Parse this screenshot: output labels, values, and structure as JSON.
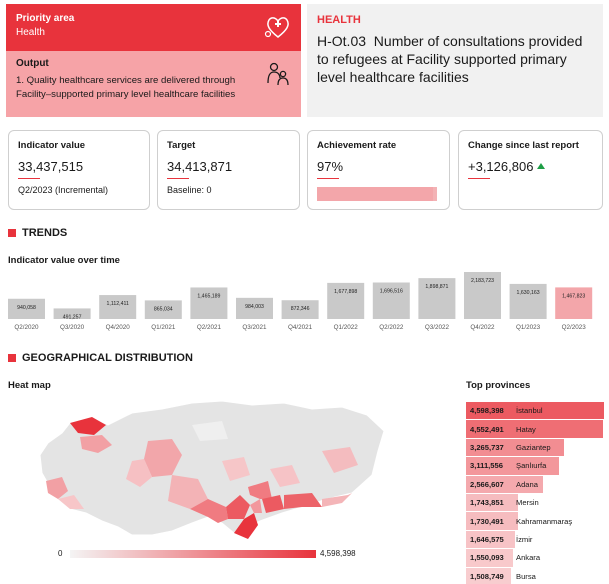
{
  "priority": {
    "heading": "Priority area",
    "value": "Health",
    "icon": "health-care-icon"
  },
  "output": {
    "heading": "Output",
    "text": "1. Quality healthcare services are delivered through Facility–supported primary level healthcare facilities",
    "icon": "family-icon"
  },
  "indicator": {
    "category": "HEALTH",
    "code": "H-Ot.03",
    "label": "Number of consultations provided to refugees at Facility supported primary level healthcare facilities"
  },
  "cards": {
    "indicator_value": {
      "title": "Indicator value",
      "value": "33,437,515",
      "sub": "Q2/2023 (Incremental)"
    },
    "target": {
      "title": "Target",
      "value": "34,413,871",
      "sub": "Baseline: 0"
    },
    "achievement": {
      "title": "Achievement rate",
      "value": "97%",
      "rate": 97
    },
    "change": {
      "title": "Change since last report",
      "value": "+3,126,806",
      "icon": "trend-up-icon"
    }
  },
  "trends": {
    "heading": "TRENDS",
    "subheading": "Indicator value over time"
  },
  "chart_data": {
    "type": "bar",
    "title": "Indicator value over time",
    "categories": [
      "Q2/2020",
      "Q3/2020",
      "Q4/2020",
      "Q1/2021",
      "Q2/2021",
      "Q3/2021",
      "Q4/2021",
      "Q1/2022",
      "Q2/2022",
      "Q3/2022",
      "Q4/2022",
      "Q1/2023",
      "Q2/2023"
    ],
    "values": [
      940058,
      491257,
      1112411,
      865034,
      1465189,
      984003,
      872346,
      1677898,
      1696516,
      1898871,
      2183723,
      1630163,
      1467823
    ],
    "labels": [
      "940,058",
      "491,257",
      "1,112,411",
      "865,034",
      "1,465,189",
      "984,003",
      "872,346",
      "1,677,898",
      "1,696,516",
      "1,898,871",
      "2,183,723",
      "1,630,163",
      "1,467,823"
    ],
    "highlight_index": 12,
    "bar_color": "#c9c9c9",
    "highlight_color": "#f3a6aa",
    "ylim": [
      0,
      2183723
    ]
  },
  "geo": {
    "heading": "GEOGRAPHICAL DISTRIBUTION",
    "heatmap_title": "Heat map",
    "legend_min": "0",
    "legend_max": "4,598,398"
  },
  "provinces": {
    "title": "Top provinces",
    "max": 4598398,
    "items": [
      {
        "value_label": "4,598,398",
        "name": "İstanbul",
        "value": 4598398
      },
      {
        "value_label": "4,552,491",
        "name": "Hatay",
        "value": 4552491
      },
      {
        "value_label": "3,265,737",
        "name": "Gaziantep",
        "value": 3265737
      },
      {
        "value_label": "3,111,556",
        "name": "Şanlıurfa",
        "value": 3111556
      },
      {
        "value_label": "2,566,607",
        "name": "Adana",
        "value": 2566607
      },
      {
        "value_label": "1,743,851",
        "name": "Mersin",
        "value": 1743851
      },
      {
        "value_label": "1,730,491",
        "name": "Kahramanmaraş",
        "value": 1730491
      },
      {
        "value_label": "1,646,575",
        "name": "İzmir",
        "value": 1646575
      },
      {
        "value_label": "1,550,093",
        "name": "Ankara",
        "value": 1550093
      },
      {
        "value_label": "1,508,749",
        "name": "Bursa",
        "value": 1508749
      }
    ]
  },
  "colors": {
    "accent": "#e8333c",
    "accent_light": "#f6a3a7",
    "bar_gray": "#c9c9c9",
    "up_green": "#1e9e46"
  }
}
